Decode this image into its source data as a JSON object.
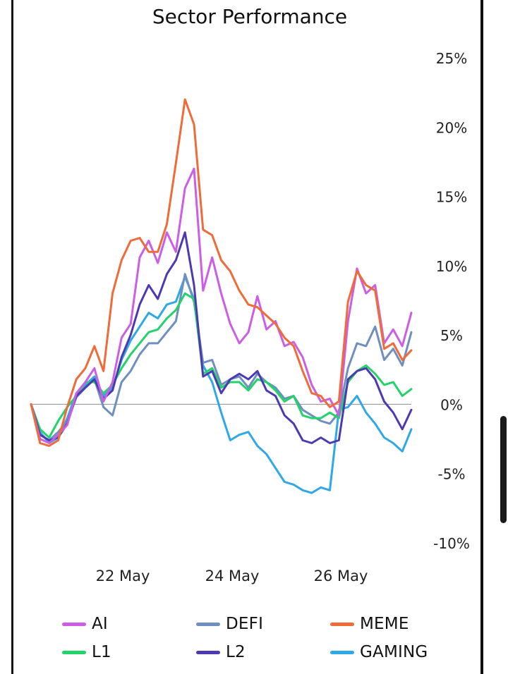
{
  "chart_data": {
    "type": "line",
    "title": "Sector Performance",
    "xlabel": "",
    "ylabel": "",
    "x_ticks": [
      "22 May",
      "24 May",
      "26 May"
    ],
    "y_ticks": [
      "25%",
      "20%",
      "15%",
      "10%",
      "5%",
      "0%",
      "-5%",
      "-10%"
    ],
    "ylim": [
      -10,
      25
    ],
    "y_unit": "%",
    "zero_line": true,
    "legend_position": "bottom",
    "x_range": [
      "20 May",
      "27 May"
    ],
    "series": [
      {
        "name": "AI",
        "color": "#cc5ee6",
        "values": [
          0,
          -2.5,
          -2.8,
          -2.2,
          -1.5,
          0.8,
          1.6,
          2.6,
          0.2,
          1.6,
          4.8,
          5.8,
          10.6,
          11.8,
          10.2,
          12.4,
          11.0,
          15.6,
          17.0,
          8.2,
          10.6,
          8.0,
          5.8,
          4.4,
          5.2,
          7.8,
          5.4,
          6.0,
          4.2,
          4.5,
          3.4,
          1.4,
          0.2,
          0.4,
          -0.8,
          6.0,
          9.8,
          8.0,
          8.6,
          4.4,
          5.4,
          4.2,
          6.6
        ]
      },
      {
        "name": "DEFI",
        "color": "#6e8fbf",
        "values": [
          0,
          -2.2,
          -2.6,
          -2.0,
          -1.2,
          0.5,
          1.2,
          1.8,
          -0.2,
          -0.8,
          1.6,
          2.4,
          3.6,
          4.4,
          4.4,
          5.2,
          6.0,
          9.4,
          7.4,
          3.0,
          3.2,
          1.4,
          1.8,
          2.0,
          1.2,
          2.2,
          1.6,
          1.2,
          0.4,
          0.6,
          -0.4,
          -0.8,
          -1.2,
          -1.4,
          -0.6,
          2.6,
          4.4,
          4.2,
          5.6,
          3.2,
          4.0,
          2.8,
          5.2
        ]
      },
      {
        "name": "MEME",
        "color": "#f06b38",
        "values": [
          0,
          -2.8,
          -3.0,
          -2.6,
          -0.2,
          1.8,
          2.6,
          4.2,
          2.4,
          8.0,
          10.4,
          11.8,
          12.0,
          11.0,
          11.0,
          13.0,
          17.4,
          22.0,
          20.2,
          12.6,
          12.2,
          10.4,
          9.6,
          8.2,
          7.2,
          7.0,
          6.4,
          5.8,
          4.8,
          4.2,
          2.4,
          0.8,
          0.6,
          -0.2,
          0.2,
          7.4,
          9.6,
          8.6,
          8.2,
          4.0,
          4.4,
          3.2,
          3.9
        ]
      },
      {
        "name": "L1",
        "color": "#22d36a",
        "values": [
          0,
          -1.8,
          -2.4,
          -1.2,
          -0.2,
          0.6,
          1.6,
          1.6,
          0.8,
          1.4,
          2.6,
          3.6,
          4.4,
          5.2,
          5.4,
          6.2,
          6.8,
          8.0,
          7.6,
          2.2,
          2.6,
          1.2,
          1.6,
          1.6,
          1.0,
          1.8,
          1.6,
          1.0,
          0.2,
          0.6,
          -0.8,
          -1.0,
          -1.0,
          -0.6,
          -1.0,
          1.6,
          2.4,
          2.8,
          2.2,
          1.4,
          1.6,
          0.6,
          1.1
        ]
      },
      {
        "name": "L2",
        "color": "#4d3ab3",
        "values": [
          0,
          -2.2,
          -2.6,
          -2.4,
          -1.4,
          0.6,
          1.2,
          1.8,
          0.4,
          1.0,
          3.4,
          5.0,
          7.2,
          8.6,
          7.6,
          9.4,
          10.4,
          12.4,
          8.6,
          2.0,
          2.4,
          0.8,
          1.8,
          2.2,
          1.8,
          2.4,
          1.0,
          0.6,
          -0.8,
          -1.4,
          -2.6,
          -2.8,
          -2.4,
          -2.8,
          -2.6,
          1.8,
          2.4,
          2.6,
          1.8,
          0.2,
          -0.6,
          -1.8,
          -0.4
        ]
      },
      {
        "name": "GAMING",
        "color": "#2ea8e8",
        "values": [
          0,
          -2.0,
          -2.8,
          -2.4,
          -1.0,
          0.8,
          1.4,
          2.0,
          0.6,
          1.2,
          3.2,
          4.6,
          5.6,
          6.6,
          6.2,
          7.2,
          7.4,
          9.2,
          7.6,
          2.8,
          1.6,
          -0.6,
          -2.6,
          -2.2,
          -2.0,
          -3.0,
          -3.6,
          -4.6,
          -5.6,
          -5.8,
          -6.2,
          -6.4,
          -6.0,
          -6.2,
          -0.4,
          -0.2,
          0.6,
          -0.6,
          -1.4,
          -2.4,
          -2.8,
          -3.4,
          -1.8
        ]
      }
    ]
  }
}
